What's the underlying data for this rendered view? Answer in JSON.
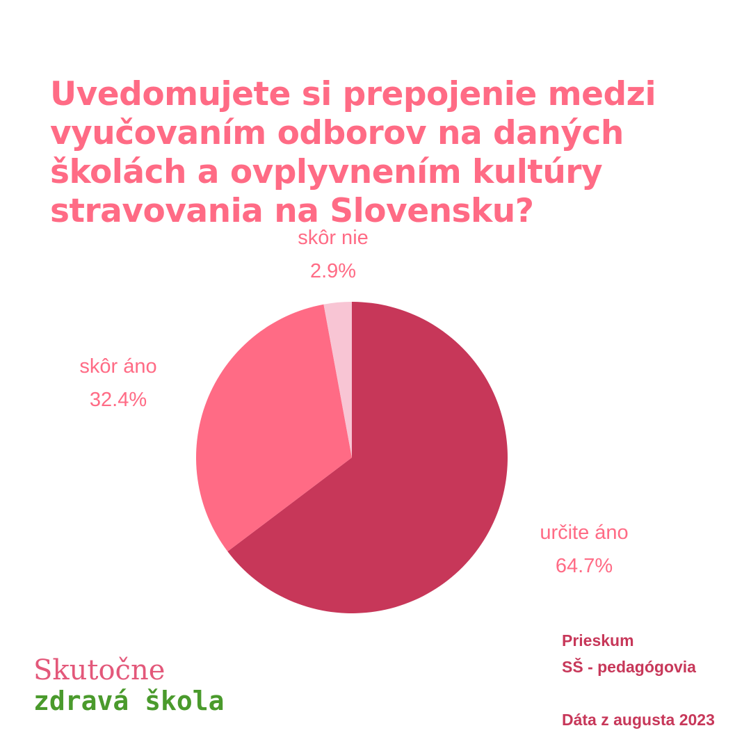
{
  "chart_data": {
    "type": "pie",
    "title": "Uvedomujete si prepojenie medzi vyučovaním odborov na daných školách a ovplyvnením kultúry stravovania na Slovensku?",
    "slices": [
      {
        "label": "určite áno",
        "value": 64.7,
        "value_label": "64.7%",
        "color": "#c73759"
      },
      {
        "label": "skôr áno",
        "value": 32.4,
        "value_label": "32.4%",
        "color": "#ff6b85"
      },
      {
        "label": "skôr nie",
        "value": 2.9,
        "value_label": "2.9%",
        "color": "#f8c5d4"
      }
    ]
  },
  "footer": {
    "survey_line1": "Prieskum",
    "survey_line2": "SŠ - pedagógovia",
    "date": "Dáta z augusta 2023"
  },
  "logo": {
    "line1": "Skutočne",
    "line2": "zdravá škola"
  }
}
